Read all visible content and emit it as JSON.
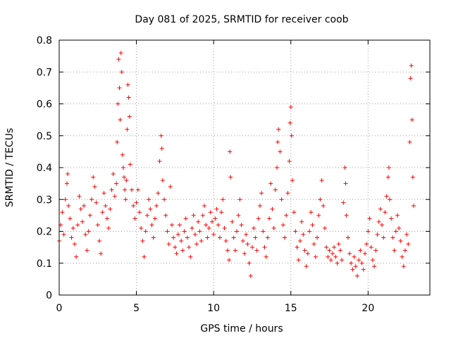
{
  "chart_data": {
    "type": "scatter",
    "title": "Day 081 of 2025, SRMTID for receiver coob",
    "xlabel": "GPS time / hours",
    "ylabel": "SRMTID / TECUs",
    "xlim": [
      0,
      24
    ],
    "ylim": [
      0,
      0.8
    ],
    "xticks": [
      "0",
      "5",
      "10",
      "15",
      "20"
    ],
    "yticks": [
      "0",
      "0.1",
      "0.2",
      "0.3",
      "0.4",
      "0.5",
      "0.6",
      "0.7",
      "0.8"
    ],
    "grid": true,
    "marker": "+",
    "color": "#ff0000",
    "series": [
      {
        "name": "SRMTID",
        "points": [
          [
            0.0,
            0.17
          ],
          [
            0.1,
            0.22
          ],
          [
            0.2,
            0.26
          ],
          [
            0.3,
            0.19
          ],
          [
            0.4,
            0.3
          ],
          [
            0.5,
            0.35
          ],
          [
            0.55,
            0.38
          ],
          [
            0.6,
            0.28
          ],
          [
            0.7,
            0.24
          ],
          [
            0.8,
            0.18
          ],
          [
            0.9,
            0.21
          ],
          [
            1.0,
            0.16
          ],
          [
            1.1,
            0.12
          ],
          [
            1.2,
            0.22
          ],
          [
            1.3,
            0.31
          ],
          [
            1.4,
            0.27
          ],
          [
            1.5,
            0.23
          ],
          [
            1.6,
            0.28
          ],
          [
            1.7,
            0.19
          ],
          [
            1.8,
            0.14
          ],
          [
            1.9,
            0.2
          ],
          [
            2.0,
            0.25
          ],
          [
            2.1,
            0.3
          ],
          [
            2.2,
            0.37
          ],
          [
            2.3,
            0.34
          ],
          [
            2.4,
            0.29
          ],
          [
            2.5,
            0.22
          ],
          [
            2.6,
            0.17
          ],
          [
            2.7,
            0.13
          ],
          [
            2.8,
            0.26
          ],
          [
            2.9,
            0.32
          ],
          [
            3.0,
            0.28
          ],
          [
            3.1,
            0.24
          ],
          [
            3.2,
            0.21
          ],
          [
            3.3,
            0.27
          ],
          [
            3.4,
            0.33
          ],
          [
            3.5,
            0.38
          ],
          [
            3.6,
            0.31
          ],
          [
            3.7,
            0.35
          ],
          [
            3.75,
            0.48
          ],
          [
            3.8,
            0.6
          ],
          [
            3.85,
            0.74
          ],
          [
            3.9,
            0.65
          ],
          [
            3.95,
            0.55
          ],
          [
            4.0,
            0.76
          ],
          [
            4.05,
            0.7
          ],
          [
            4.1,
            0.44
          ],
          [
            4.15,
            0.4
          ],
          [
            4.2,
            0.37
          ],
          [
            4.25,
            0.33
          ],
          [
            4.3,
            0.3
          ],
          [
            4.35,
            0.36
          ],
          [
            4.4,
            0.52
          ],
          [
            4.45,
            0.66
          ],
          [
            4.5,
            0.62
          ],
          [
            4.55,
            0.56
          ],
          [
            4.6,
            0.41
          ],
          [
            4.7,
            0.33
          ],
          [
            4.8,
            0.28
          ],
          [
            4.9,
            0.24
          ],
          [
            5.0,
            0.29
          ],
          [
            5.1,
            0.33
          ],
          [
            5.2,
            0.26
          ],
          [
            5.3,
            0.21
          ],
          [
            5.4,
            0.17
          ],
          [
            5.5,
            0.12
          ],
          [
            5.6,
            0.2
          ],
          [
            5.7,
            0.25
          ],
          [
            5.8,
            0.3
          ],
          [
            5.9,
            0.27
          ],
          [
            6.0,
            0.22
          ],
          [
            6.1,
            0.18
          ],
          [
            6.2,
            0.24
          ],
          [
            6.3,
            0.28
          ],
          [
            6.4,
            0.32
          ],
          [
            6.5,
            0.42
          ],
          [
            6.6,
            0.5
          ],
          [
            6.65,
            0.46
          ],
          [
            6.7,
            0.36
          ],
          [
            6.8,
            0.3
          ],
          [
            6.9,
            0.25
          ],
          [
            7.0,
            0.2
          ],
          [
            7.1,
            0.16
          ],
          [
            7.2,
            0.34
          ],
          [
            7.3,
            0.22
          ],
          [
            7.4,
            0.18
          ],
          [
            7.5,
            0.15
          ],
          [
            7.6,
            0.13
          ],
          [
            7.7,
            0.19
          ],
          [
            7.8,
            0.22
          ],
          [
            7.9,
            0.17
          ],
          [
            8.0,
            0.14
          ],
          [
            8.1,
            0.2
          ],
          [
            8.2,
            0.24
          ],
          [
            8.3,
            0.18
          ],
          [
            8.4,
            0.15
          ],
          [
            8.5,
            0.12
          ],
          [
            8.6,
            0.21
          ],
          [
            8.7,
            0.25
          ],
          [
            8.8,
            0.19
          ],
          [
            8.9,
            0.16
          ],
          [
            9.0,
            0.23
          ],
          [
            9.1,
            0.2
          ],
          [
            9.2,
            0.17
          ],
          [
            9.3,
            0.25
          ],
          [
            9.4,
            0.28
          ],
          [
            9.5,
            0.22
          ],
          [
            9.6,
            0.18
          ],
          [
            9.7,
            0.21
          ],
          [
            9.8,
            0.26
          ],
          [
            9.9,
            0.23
          ],
          [
            10.0,
            0.19
          ],
          [
            10.1,
            0.24
          ],
          [
            10.2,
            0.27
          ],
          [
            10.3,
            0.22
          ],
          [
            10.4,
            0.18
          ],
          [
            10.5,
            0.26
          ],
          [
            10.6,
            0.3
          ],
          [
            10.7,
            0.21
          ],
          [
            10.8,
            0.17
          ],
          [
            10.9,
            0.14
          ],
          [
            11.0,
            0.11
          ],
          [
            11.05,
            0.45
          ],
          [
            11.1,
            0.37
          ],
          [
            11.2,
            0.23
          ],
          [
            11.3,
            0.18
          ],
          [
            11.4,
            0.14
          ],
          [
            11.5,
            0.2
          ],
          [
            11.6,
            0.25
          ],
          [
            11.7,
            0.3
          ],
          [
            11.8,
            0.22
          ],
          [
            11.9,
            0.17
          ],
          [
            12.0,
            0.13
          ],
          [
            12.1,
            0.19
          ],
          [
            12.2,
            0.16
          ],
          [
            12.3,
            0.1
          ],
          [
            12.4,
            0.06
          ],
          [
            12.5,
            0.15
          ],
          [
            12.6,
            0.21
          ],
          [
            12.7,
            0.18
          ],
          [
            12.8,
            0.14
          ],
          [
            12.9,
            0.24
          ],
          [
            13.0,
            0.28
          ],
          [
            13.1,
            0.32
          ],
          [
            13.2,
            0.2
          ],
          [
            13.3,
            0.15
          ],
          [
            13.4,
            0.12
          ],
          [
            13.5,
            0.18
          ],
          [
            13.6,
            0.24
          ],
          [
            13.7,
            0.35
          ],
          [
            13.8,
            0.27
          ],
          [
            13.9,
            0.21
          ],
          [
            14.0,
            0.33
          ],
          [
            14.1,
            0.4
          ],
          [
            14.15,
            0.48
          ],
          [
            14.2,
            0.52
          ],
          [
            14.3,
            0.45
          ],
          [
            14.4,
            0.3
          ],
          [
            14.5,
            0.22
          ],
          [
            14.6,
            0.18
          ],
          [
            14.7,
            0.25
          ],
          [
            14.8,
            0.32
          ],
          [
            14.9,
            0.42
          ],
          [
            14.95,
            0.54
          ],
          [
            15.0,
            0.59
          ],
          [
            15.05,
            0.5
          ],
          [
            15.1,
            0.36
          ],
          [
            15.2,
            0.26
          ],
          [
            15.3,
            0.2
          ],
          [
            15.4,
            0.15
          ],
          [
            15.5,
            0.11
          ],
          [
            15.6,
            0.17
          ],
          [
            15.7,
            0.23
          ],
          [
            15.8,
            0.19
          ],
          [
            15.9,
            0.14
          ],
          [
            16.0,
            0.09
          ],
          [
            16.1,
            0.13
          ],
          [
            16.2,
            0.2
          ],
          [
            16.3,
            0.26
          ],
          [
            16.4,
            0.22
          ],
          [
            16.5,
            0.16
          ],
          [
            16.6,
            0.12
          ],
          [
            16.7,
            0.18
          ],
          [
            16.8,
            0.25
          ],
          [
            16.9,
            0.3
          ],
          [
            17.0,
            0.36
          ],
          [
            17.1,
            0.28
          ],
          [
            17.2,
            0.21
          ],
          [
            17.3,
            0.15
          ],
          [
            17.4,
            0.12
          ],
          [
            17.5,
            0.14
          ],
          [
            17.6,
            0.11
          ],
          [
            17.7,
            0.13
          ],
          [
            17.8,
            0.15
          ],
          [
            17.9,
            0.12
          ],
          [
            18.0,
            0.1
          ],
          [
            18.1,
            0.16
          ],
          [
            18.2,
            0.14
          ],
          [
            18.3,
            0.11
          ],
          [
            18.4,
            0.29
          ],
          [
            18.5,
            0.4
          ],
          [
            18.55,
            0.35
          ],
          [
            18.6,
            0.25
          ],
          [
            18.7,
            0.18
          ],
          [
            18.8,
            0.13
          ],
          [
            18.9,
            0.1
          ],
          [
            19.0,
            0.08
          ],
          [
            19.1,
            0.12
          ],
          [
            19.2,
            0.09
          ],
          [
            19.3,
            0.06
          ],
          [
            19.4,
            0.11
          ],
          [
            19.5,
            0.14
          ],
          [
            19.6,
            0.1
          ],
          [
            19.7,
            0.08
          ],
          [
            19.8,
            0.13
          ],
          [
            19.9,
            0.16
          ],
          [
            20.0,
            0.2
          ],
          [
            20.1,
            0.24
          ],
          [
            20.2,
            0.15
          ],
          [
            20.3,
            0.11
          ],
          [
            20.4,
            0.09
          ],
          [
            20.5,
            0.14
          ],
          [
            20.6,
            0.19
          ],
          [
            20.7,
            0.23
          ],
          [
            20.8,
            0.27
          ],
          [
            20.9,
            0.22
          ],
          [
            21.0,
            0.18
          ],
          [
            21.1,
            0.26
          ],
          [
            21.2,
            0.31
          ],
          [
            21.3,
            0.37
          ],
          [
            21.35,
            0.4
          ],
          [
            21.4,
            0.3
          ],
          [
            21.5,
            0.24
          ],
          [
            21.6,
            0.18
          ],
          [
            21.7,
            0.14
          ],
          [
            21.8,
            0.2
          ],
          [
            21.9,
            0.25
          ],
          [
            22.0,
            0.21
          ],
          [
            22.1,
            0.17
          ],
          [
            22.2,
            0.12
          ],
          [
            22.3,
            0.09
          ],
          [
            22.4,
            0.14
          ],
          [
            22.5,
            0.19
          ],
          [
            22.6,
            0.16
          ],
          [
            22.7,
            0.48
          ],
          [
            22.75,
            0.68
          ],
          [
            22.8,
            0.72
          ],
          [
            22.85,
            0.55
          ],
          [
            22.9,
            0.37
          ],
          [
            22.95,
            0.28
          ]
        ]
      }
    ]
  }
}
